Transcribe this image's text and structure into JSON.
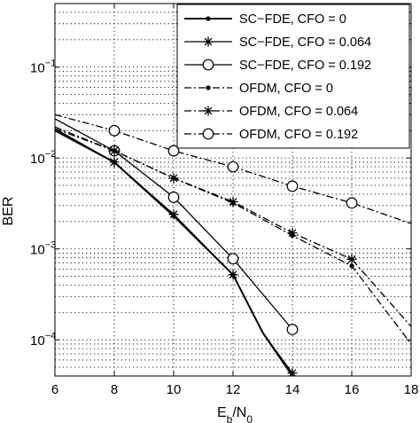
{
  "chart_data": {
    "type": "line",
    "xlabel": "Eb/N0",
    "xlabel_main": "E",
    "xlabel_sub1": "b",
    "xlabel_mid": "/N",
    "xlabel_sub2": "0",
    "ylabel": "BER",
    "xlim": [
      6,
      18
    ],
    "ylim": [
      4e-05,
      0.5
    ],
    "yscale": "log",
    "grid": true,
    "legend_position": "top-right",
    "x_ticks": [
      "6",
      "8",
      "10",
      "12",
      "14",
      "16",
      "18"
    ],
    "y_ticks": [
      {
        "value": 0.1,
        "base": "10",
        "exp": "−1"
      },
      {
        "value": 0.01,
        "base": "10",
        "exp": "−2"
      },
      {
        "value": 0.001,
        "base": "10",
        "exp": "−3"
      },
      {
        "value": 0.0001,
        "base": "10",
        "exp": "−4"
      }
    ],
    "series": [
      {
        "name": "SC−FDE, CFO = 0",
        "style": "solid",
        "marker": "dot",
        "x": [
          6,
          8,
          10,
          12,
          13,
          14
        ],
        "y": [
          0.02,
          0.009,
          0.0023,
          0.00052,
          0.00012,
          4e-05
        ]
      },
      {
        "name": "SC−FDE, CFO = 0.064",
        "style": "solid",
        "marker": "star",
        "x": [
          6,
          8,
          10,
          12,
          13,
          14
        ],
        "y": [
          0.021,
          0.009,
          0.0024,
          0.00052,
          0.00012,
          4.3e-05
        ]
      },
      {
        "name": "SC−FDE, CFO = 0.192",
        "style": "solid",
        "marker": "circle",
        "x": [
          6,
          8,
          10,
          12,
          14
        ],
        "y": [
          0.027,
          0.012,
          0.0037,
          0.00078,
          0.00013
        ]
      },
      {
        "name": "OFDM, CFO = 0",
        "style": "dashdot",
        "marker": "dot",
        "x": [
          6,
          8,
          10,
          12,
          14,
          16,
          18
        ],
        "y": [
          0.021,
          0.012,
          0.006,
          0.0032,
          0.0014,
          0.00065,
          9e-05
        ]
      },
      {
        "name": "OFDM, CFO = 0.064",
        "style": "dashdot",
        "marker": "star",
        "x": [
          6,
          8,
          10,
          12,
          14,
          16,
          18
        ],
        "y": [
          0.022,
          0.012,
          0.006,
          0.0033,
          0.0015,
          0.00077,
          0.00014
        ]
      },
      {
        "name": "OFDM, CFO = 0.192",
        "style": "dashdot",
        "marker": "circle",
        "x": [
          6,
          8,
          10,
          12,
          14,
          16,
          18
        ],
        "y": [
          0.03,
          0.02,
          0.012,
          0.008,
          0.0049,
          0.0032,
          0.0019
        ]
      }
    ]
  }
}
